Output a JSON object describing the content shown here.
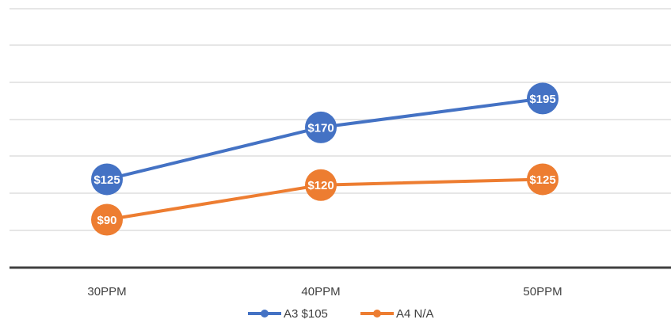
{
  "chart_data": {
    "type": "line",
    "categories": [
      "30PPM",
      "40PPM",
      "50PPM"
    ],
    "series": [
      {
        "name": "A3 $105",
        "values": [
          125,
          170,
          195
        ],
        "labels": [
          "$125",
          "$170",
          "$195"
        ],
        "color": "#4472C4"
      },
      {
        "name": "A4 N/A",
        "values": [
          90,
          120,
          125
        ],
        "labels": [
          "$90",
          "$120",
          "$125"
        ],
        "color": "#ED7D31"
      }
    ],
    "grid": true,
    "legend": "bottom-center"
  }
}
